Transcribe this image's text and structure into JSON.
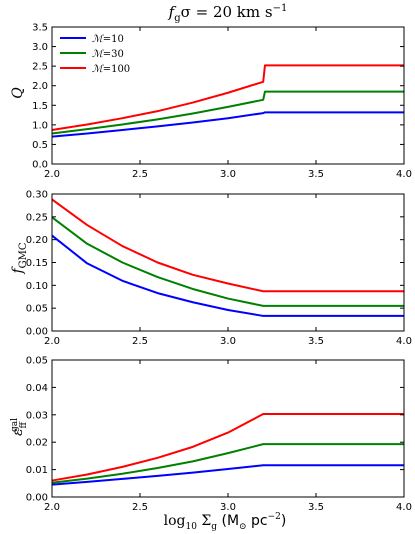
{
  "figure": {
    "title": "f_gσ = 20 km s⁻¹",
    "title_parts": [
      "f",
      "g",
      "σ = 20 km s",
      "−1"
    ],
    "xlabel_parts": [
      "log",
      "10",
      " Σ",
      "g",
      " (M",
      "⊙",
      " pc",
      "−2",
      ")"
    ]
  },
  "chart_data": [
    {
      "type": "line",
      "name": "Q",
      "ylabel": "Q",
      "xlim": [
        2.0,
        4.0
      ],
      "ylim": [
        0.0,
        3.5
      ],
      "xticks": [
        "2.0",
        "2.5",
        "3.0",
        "3.5",
        "4.0"
      ],
      "yticks": [
        "0.0",
        "0.5",
        "1.0",
        "1.5",
        "2.0",
        "2.5",
        "3.0",
        "3.5"
      ],
      "ytick_values": [
        0,
        0.5,
        1,
        1.5,
        2,
        2.5,
        3,
        3.5
      ],
      "grid": false,
      "legend": "top-left",
      "x": [
        2.0,
        2.2,
        2.4,
        2.6,
        2.8,
        3.0,
        3.2,
        3.21,
        3.4,
        3.6,
        3.8,
        4.0
      ],
      "series": [
        {
          "name": "M=10",
          "color": "#0000ff",
          "values": [
            0.7,
            0.78,
            0.87,
            0.96,
            1.06,
            1.17,
            1.3,
            1.32,
            1.32,
            1.32,
            1.32,
            1.32
          ]
        },
        {
          "name": "M=30",
          "color": "#008000",
          "values": [
            0.78,
            0.89,
            1.01,
            1.14,
            1.29,
            1.46,
            1.64,
            1.85,
            1.85,
            1.85,
            1.85,
            1.85
          ]
        },
        {
          "name": "M=100",
          "color": "#ff0000",
          "values": [
            0.87,
            1.01,
            1.17,
            1.35,
            1.57,
            1.82,
            2.1,
            2.52,
            2.52,
            2.52,
            2.52,
            2.52
          ]
        }
      ]
    },
    {
      "type": "line",
      "name": "f_GMC",
      "ylabel": "f_GMC",
      "xlim": [
        2.0,
        4.0
      ],
      "ylim": [
        0.0,
        0.3
      ],
      "xticks": [
        "2.0",
        "2.5",
        "3.0",
        "3.5",
        "4.0"
      ],
      "yticks": [
        "0.00",
        "0.05",
        "0.10",
        "0.15",
        "0.20",
        "0.25",
        "0.30"
      ],
      "ytick_values": [
        0,
        0.05,
        0.1,
        0.15,
        0.2,
        0.25,
        0.3
      ],
      "grid": false,
      "x": [
        2.0,
        2.2,
        2.4,
        2.6,
        2.8,
        3.0,
        3.2,
        3.4,
        3.6,
        3.8,
        4.0
      ],
      "series": [
        {
          "name": "M=10",
          "color": "#0000ff",
          "values": [
            0.209,
            0.148,
            0.11,
            0.083,
            0.063,
            0.046,
            0.033,
            0.033,
            0.033,
            0.033,
            0.033
          ]
        },
        {
          "name": "M=30",
          "color": "#008000",
          "values": [
            0.249,
            0.191,
            0.15,
            0.118,
            0.092,
            0.071,
            0.055,
            0.055,
            0.055,
            0.055,
            0.055
          ]
        },
        {
          "name": "M=100",
          "color": "#ff0000",
          "values": [
            0.288,
            0.232,
            0.186,
            0.15,
            0.123,
            0.104,
            0.087,
            0.087,
            0.087,
            0.087,
            0.087
          ]
        }
      ]
    },
    {
      "type": "line",
      "name": "eps_ff_gal",
      "ylabel": "ε_ff^gal",
      "xlim": [
        2.0,
        4.0
      ],
      "ylim": [
        0.0,
        0.05
      ],
      "xticks": [
        "2.0",
        "2.5",
        "3.0",
        "3.5",
        "4.0"
      ],
      "yticks": [
        "0.00",
        "0.01",
        "0.02",
        "0.03",
        "0.04",
        "0.05"
      ],
      "ytick_values": [
        0,
        0.01,
        0.02,
        0.03,
        0.04,
        0.05
      ],
      "grid": false,
      "x": [
        2.0,
        2.2,
        2.4,
        2.6,
        2.8,
        3.0,
        3.2,
        3.4,
        3.6,
        3.8,
        4.0
      ],
      "series": [
        {
          "name": "M=10",
          "color": "#0000ff",
          "values": [
            0.0045,
            0.0055,
            0.0066,
            0.0077,
            0.0089,
            0.0102,
            0.0116,
            0.0116,
            0.0116,
            0.0116,
            0.0116
          ]
        },
        {
          "name": "M=30",
          "color": "#008000",
          "values": [
            0.0052,
            0.0067,
            0.0085,
            0.0106,
            0.013,
            0.016,
            0.0193,
            0.0193,
            0.0193,
            0.0193,
            0.0193
          ]
        },
        {
          "name": "M=100",
          "color": "#ff0000",
          "values": [
            0.006,
            0.0082,
            0.011,
            0.0143,
            0.0183,
            0.0235,
            0.0303,
            0.0303,
            0.0303,
            0.0303,
            0.0303
          ]
        }
      ]
    }
  ],
  "legend_entries": [
    {
      "symbol": "ℳ",
      "text": "=10",
      "color": "#0000ff"
    },
    {
      "symbol": "ℳ",
      "text": "=30",
      "color": "#008000"
    },
    {
      "symbol": "ℳ",
      "text": "=100",
      "color": "#ff0000"
    }
  ]
}
